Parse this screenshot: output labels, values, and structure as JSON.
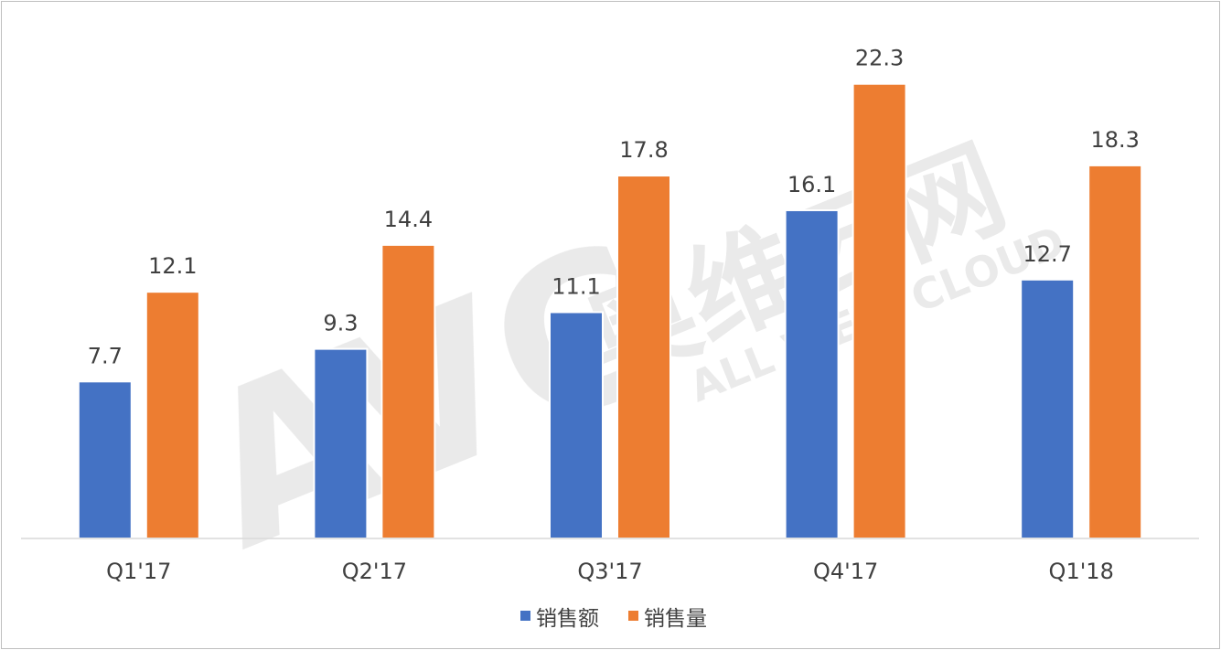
{
  "chart_data": {
    "type": "bar",
    "categories": [
      "Q1'17",
      "Q2'17",
      "Q3'17",
      "Q4'17",
      "Q1'18"
    ],
    "series": [
      {
        "name": "销售额",
        "color": "#4472c4",
        "values": [
          7.7,
          9.3,
          11.1,
          16.1,
          12.7
        ]
      },
      {
        "name": "销售量",
        "color": "#ed7d31",
        "values": [
          12.1,
          14.4,
          17.8,
          22.3,
          18.3
        ]
      }
    ],
    "title": "",
    "xlabel": "",
    "ylabel": "",
    "ylim": [
      0,
      24
    ],
    "grid": false,
    "y_axis_visible": false,
    "legend_position": "bottom",
    "data_labels": true
  },
  "watermark": {
    "logo_text": "AVC",
    "cn_text": "奥维云网",
    "en_text": "ALL VIEW CLOUD"
  }
}
